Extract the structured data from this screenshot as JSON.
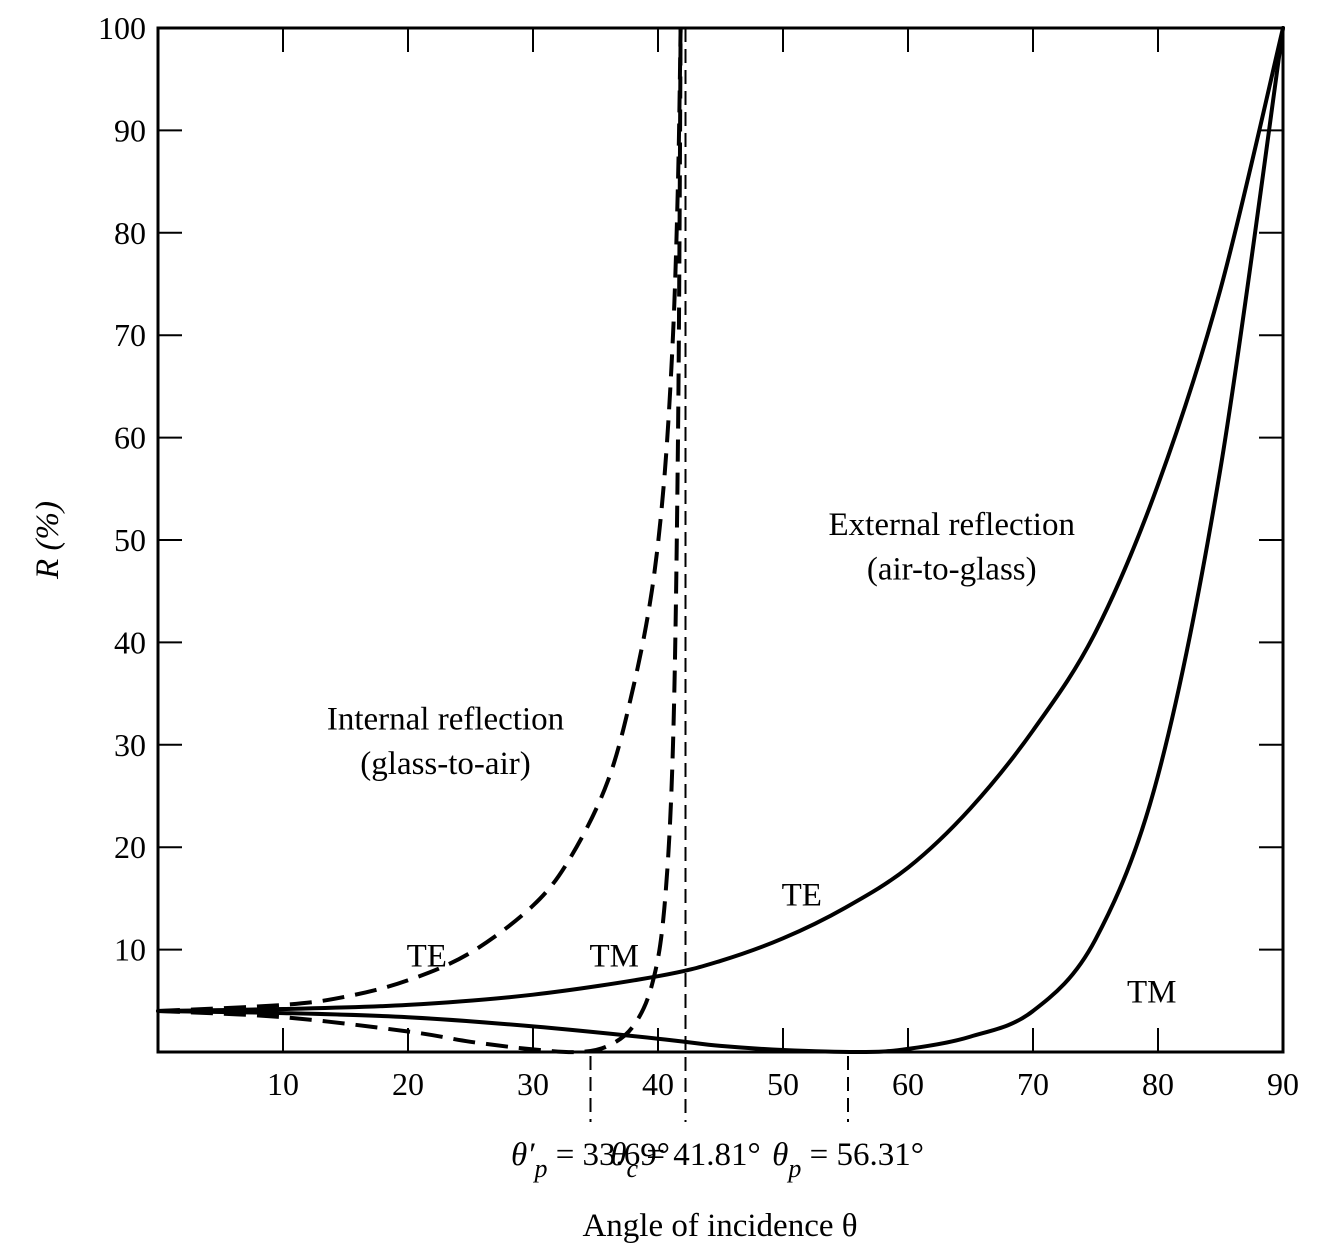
{
  "chart_data": {
    "type": "line",
    "title": "",
    "xlabel": "Angle of incidence θ",
    "ylabel": "R (%)",
    "xlim": [
      0,
      90
    ],
    "ylim": [
      0,
      100
    ],
    "x_ticks": [
      10,
      20,
      30,
      40,
      50,
      60,
      70,
      80,
      90
    ],
    "y_ticks": [
      10,
      20,
      30,
      40,
      50,
      60,
      70,
      80,
      90,
      100
    ],
    "grid": false,
    "series": [
      {
        "name": "External TE",
        "style": "solid",
        "x": [
          0,
          10,
          20,
          30,
          40,
          45,
          50,
          55,
          60,
          65,
          70,
          75,
          80,
          85,
          90
        ],
        "y": [
          4.0,
          4.2,
          4.6,
          5.6,
          7.4,
          8.9,
          11.1,
          14.1,
          18.0,
          23.8,
          31.4,
          41.0,
          55.4,
          74.5,
          100
        ]
      },
      {
        "name": "External TM",
        "style": "solid",
        "x": [
          0,
          10,
          20,
          30,
          40,
          45,
          50,
          56.31,
          60,
          65,
          70,
          75,
          80,
          85,
          90
        ],
        "y": [
          4.0,
          3.8,
          3.4,
          2.5,
          1.3,
          0.6,
          0.2,
          0,
          0.3,
          1.5,
          4.0,
          11.0,
          27.0,
          57.0,
          100
        ]
      },
      {
        "name": "Internal TE",
        "style": "dashed",
        "x": [
          0,
          10,
          15,
          20,
          25,
          30,
          33,
          36,
          38,
          39.5,
          40.5,
          41.2,
          41.6,
          41.81
        ],
        "y": [
          4.0,
          4.6,
          5.4,
          7.0,
          9.7,
          14.3,
          19.0,
          26.5,
          35.5,
          45.0,
          56.0,
          70.0,
          85.0,
          100
        ]
      },
      {
        "name": "Internal TM",
        "style": "dashed",
        "x": [
          0,
          10,
          20,
          25,
          30,
          33.69,
          36,
          38,
          39.5,
          40.5,
          41.2,
          41.6,
          41.81
        ],
        "y": [
          4.0,
          3.4,
          2.0,
          1.0,
          0.25,
          0,
          0.6,
          2.5,
          6.5,
          14.0,
          30.0,
          60.0,
          100
        ]
      }
    ],
    "curve_labels": [
      {
        "text": "TE",
        "x": 21.5,
        "y": 9.5
      },
      {
        "text": "TM",
        "x": 36.5,
        "y": 9.5
      },
      {
        "text": "TE",
        "x": 51.5,
        "y": 15.5
      },
      {
        "text": "TM",
        "x": 79.5,
        "y": 6.0
      }
    ],
    "region_labels": [
      {
        "lines": [
          "Internal reflection",
          "(glass-to-air)"
        ],
        "x": 23.0,
        "y": 31.5
      },
      {
        "lines": [
          "External reflection",
          "(air-to-glass)"
        ],
        "x": 63.5,
        "y": 50.5
      }
    ],
    "reference_angles": [
      {
        "symbol": "θ′",
        "subscript": "p",
        "text": " = 33.69°",
        "x": 34.6
      },
      {
        "symbol": "θ",
        "subscript": "c",
        "text": " = 41.81°",
        "x": 42.2
      },
      {
        "symbol": "θ",
        "subscript": "p",
        "text": " = 56.31°",
        "x": 55.2
      }
    ],
    "critical_line_x": 42.2
  }
}
